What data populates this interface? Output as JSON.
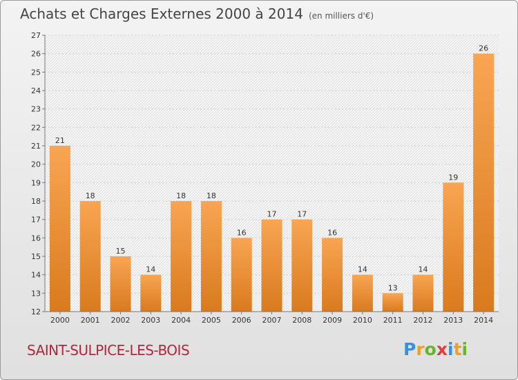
{
  "header": {
    "title": "Achats et Charges Externes 2000 à 2014",
    "subtitle": "(en milliers d'€)"
  },
  "commune": "SAINT-SULPICE-LES-BOIS",
  "logo": {
    "letters": [
      "P",
      "r",
      "o",
      "x",
      "i",
      "t",
      "i"
    ],
    "colors": [
      "#3a8fd6",
      "#f0a020",
      "#6ab42d",
      "#e23c3c",
      "#3a8fd6",
      "#f0a020",
      "#6ab42d"
    ]
  },
  "colors": {
    "bar_light": "#f8a553",
    "bar_dark": "#d97a1e",
    "title_accent": "#b3263d"
  },
  "chart_data": {
    "type": "bar",
    "title": "Achats et Charges Externes 2000 à 2014",
    "subtitle": "(en milliers d'€)",
    "categories": [
      "2000",
      "2001",
      "2002",
      "2003",
      "2004",
      "2005",
      "2006",
      "2007",
      "2008",
      "2009",
      "2010",
      "2011",
      "2012",
      "2013",
      "2014"
    ],
    "values": [
      21,
      18,
      15,
      14,
      18,
      18,
      16,
      17,
      17,
      16,
      14,
      13,
      14,
      19,
      26
    ],
    "ylim": [
      12,
      27
    ],
    "yticks": [
      12,
      13,
      14,
      15,
      16,
      17,
      18,
      19,
      20,
      21,
      22,
      23,
      24,
      25,
      26,
      27
    ],
    "grid": "horizontal",
    "data_labels": true
  }
}
